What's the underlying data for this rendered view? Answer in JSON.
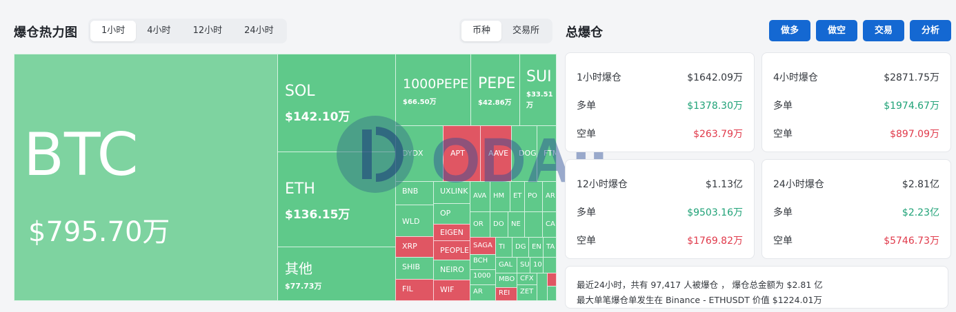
{
  "heatmap": {
    "title": "爆仓热力图",
    "time_tabs": [
      "1小时",
      "4小时",
      "12小时",
      "24小时"
    ],
    "type_tabs": [
      "币种",
      "交易所"
    ],
    "cells": {
      "btc": {
        "symbol": "BTC",
        "value": "$795.70万"
      },
      "sol": {
        "symbol": "SOL",
        "value": "$142.10万"
      },
      "eth": {
        "symbol": "ETH",
        "value": "$136.15万"
      },
      "other": {
        "symbol": "其他",
        "value": "$77.73万"
      },
      "pepe1000": {
        "symbol": "1000PEPE",
        "value": "$66.50万"
      },
      "pepe": {
        "symbol": "PEPE",
        "value": "$42.86万"
      },
      "sui": {
        "symbol": "SUI",
        "value": "$33.51 万"
      },
      "dydx": "DYDX",
      "apt": "APT",
      "aave": "AAVE",
      "doge": "DOG",
      "ftm": "FTM",
      "bnb": "BNB",
      "uxlink": "UXLINK",
      "op": "OP",
      "wld": "WLD",
      "eigen": "EIGEN",
      "xrp": "XRP",
      "people": "PEOPLE",
      "shib": "SHIB",
      "neiro": "NEIRO",
      "fil": "FIL",
      "wif": "WIF",
      "ava": "AVA",
      "hm": "HM",
      "et": "ET",
      "po": "PO",
      "ar1": "AR",
      "or": "OR",
      "do": "DO",
      "ne": "NE",
      "ca": "CA",
      "saga": "SAGA",
      "ti": "TI",
      "dg": "DG",
      "en": "EN",
      "ta": "TA",
      "bch": "BCH",
      "gal": "GAL",
      "su": "SU",
      "ten": "10",
      "k1000": "1000",
      "mbo": "MBO",
      "cfx": "CFX",
      "ar2": "AR",
      "rei": "REI",
      "zet": "ZET"
    },
    "watermark": "ODAILY"
  },
  "total": {
    "title": "总爆仓",
    "actions": [
      "做多",
      "做空",
      "交易",
      "分析"
    ],
    "cards": [
      {
        "label": "1小时爆仓",
        "value": "$1642.09万",
        "long_label": "多单",
        "long": "$1378.30万",
        "short_label": "空单",
        "short": "$263.79万"
      },
      {
        "label": "4小时爆仓",
        "value": "$2871.75万",
        "long_label": "多单",
        "long": "$1974.67万",
        "short_label": "空单",
        "short": "$897.09万"
      },
      {
        "label": "12小时爆仓",
        "value": "$1.13亿",
        "long_label": "多单",
        "long": "$9503.16万",
        "short_label": "空单",
        "short": "$1769.82万"
      },
      {
        "label": "24小时爆仓",
        "value": "$2.81亿",
        "long_label": "多单",
        "long": "$2.23亿",
        "short_label": "空单",
        "short": "$5746.73万"
      }
    ],
    "summary_line1": "最近24小时，共有 97,417 人被爆仓 ， 爆仓总金额为 $2.81 亿",
    "summary_line2": "最大单笔爆仓单发生在 Binance - ETHUSDT 价值 $1224.01万"
  },
  "colors": {
    "green": "#5fc98a",
    "red": "#e05663",
    "accent": "#1468d2",
    "up": "#1fa277",
    "down": "#e0394a"
  }
}
